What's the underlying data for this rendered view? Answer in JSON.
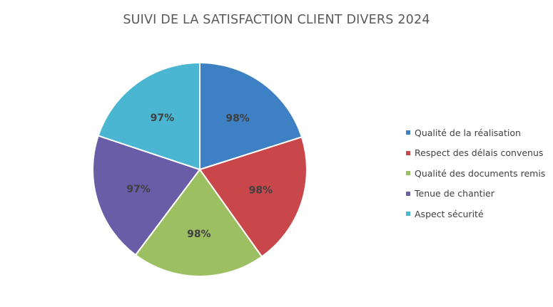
{
  "chart_data": {
    "type": "pie",
    "title": "SUIVI DE LA SATISFACTION CLIENT DIVERS 2024",
    "categories": [
      "Qualité de la réalisation",
      "Respect des délais convenus",
      "Qualité des documents remis",
      "Tenue de chantier",
      "Aspect sécurité"
    ],
    "values": [
      98,
      98,
      98,
      97,
      97
    ],
    "data_labels": [
      "98%",
      "98%",
      "98%",
      "97%",
      "97%"
    ],
    "colors": [
      "#3D80C3",
      "#C9474A",
      "#9CBF62",
      "#6A5DA8",
      "#4AB6D1"
    ],
    "legend_position": "right",
    "start_angle": "top, clockwise"
  }
}
